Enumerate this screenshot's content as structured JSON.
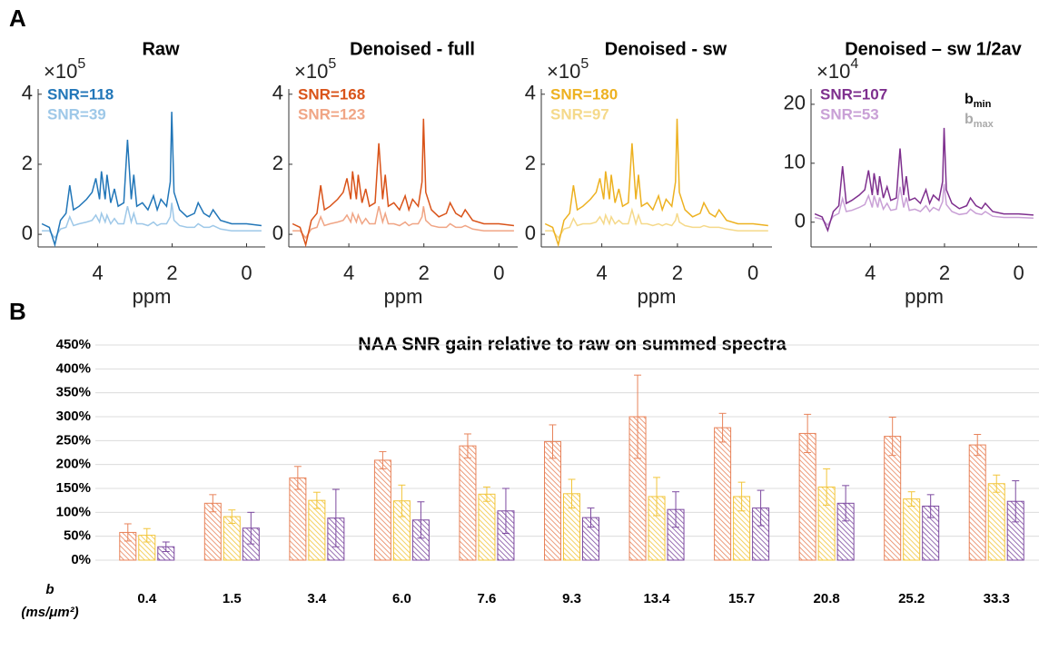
{
  "panel_labels": [
    "A",
    "B"
  ],
  "chart_data": [
    {
      "type": "line",
      "title": "Raw",
      "y_scale_base": "×10",
      "y_scale_exponent": "5",
      "x_label": "ppm",
      "xlim": [
        5.6,
        -0.5
      ],
      "xticks": [
        4,
        2,
        0
      ],
      "ylim": [
        -0.36,
        4.15
      ],
      "yticks": [
        0,
        2,
        4
      ],
      "x": [
        5.5,
        5.3,
        5.15,
        5.0,
        4.85,
        4.75,
        4.65,
        4.5,
        4.3,
        4.15,
        4.05,
        3.95,
        3.9,
        3.8,
        3.75,
        3.65,
        3.55,
        3.45,
        3.3,
        3.2,
        3.1,
        3.03,
        2.95,
        2.8,
        2.65,
        2.5,
        2.4,
        2.3,
        2.15,
        2.05,
        2.01,
        1.95,
        1.8,
        1.6,
        1.4,
        1.3,
        1.15,
        1.0,
        0.9,
        0.7,
        0.4,
        0.0,
        -0.4
      ],
      "series": [
        {
          "label": "SNR=118",
          "color": "#2176b8",
          "values": [
            0.3,
            0.2,
            -0.3,
            0.4,
            0.6,
            1.4,
            0.7,
            0.8,
            1.0,
            1.2,
            1.6,
            1.0,
            1.8,
            1.0,
            1.7,
            0.9,
            1.3,
            0.8,
            0.9,
            2.7,
            1.0,
            1.7,
            0.8,
            0.9,
            0.7,
            1.1,
            0.7,
            1.0,
            0.8,
            1.5,
            3.5,
            1.2,
            0.7,
            0.5,
            0.6,
            0.9,
            0.6,
            0.5,
            0.7,
            0.4,
            0.3,
            0.3,
            0.25
          ]
        },
        {
          "label": "SNR=39",
          "color": "#9ec8e8",
          "values": [
            0.1,
            0.1,
            -0.1,
            0.15,
            0.2,
            0.5,
            0.25,
            0.3,
            0.35,
            0.4,
            0.55,
            0.35,
            0.6,
            0.35,
            0.55,
            0.3,
            0.45,
            0.3,
            0.3,
            0.8,
            0.35,
            0.6,
            0.3,
            0.3,
            0.25,
            0.35,
            0.25,
            0.3,
            0.3,
            0.5,
            0.9,
            0.4,
            0.25,
            0.2,
            0.2,
            0.3,
            0.2,
            0.2,
            0.25,
            0.15,
            0.1,
            0.1,
            0.1
          ]
        }
      ]
    },
    {
      "type": "line",
      "title": "Denoised - full",
      "y_scale_base": "×10",
      "y_scale_exponent": "5",
      "x_label": "ppm",
      "xlim": [
        5.6,
        -0.5
      ],
      "xticks": [
        4,
        2,
        0
      ],
      "ylim": [
        -0.36,
        4.15
      ],
      "yticks": [
        0,
        2,
        4
      ],
      "x": [
        5.5,
        5.3,
        5.15,
        5.0,
        4.85,
        4.75,
        4.65,
        4.5,
        4.3,
        4.15,
        4.05,
        3.95,
        3.9,
        3.8,
        3.75,
        3.65,
        3.55,
        3.45,
        3.3,
        3.2,
        3.1,
        3.03,
        2.95,
        2.8,
        2.65,
        2.5,
        2.4,
        2.3,
        2.15,
        2.05,
        2.01,
        1.95,
        1.8,
        1.6,
        1.4,
        1.3,
        1.15,
        1.0,
        0.9,
        0.7,
        0.4,
        0.0,
        -0.4
      ],
      "series": [
        {
          "label": "SNR=168",
          "color": "#d95319",
          "values": [
            0.3,
            0.2,
            -0.3,
            0.4,
            0.6,
            1.4,
            0.7,
            0.8,
            1.0,
            1.2,
            1.6,
            1.0,
            1.8,
            1.0,
            1.7,
            0.9,
            1.3,
            0.8,
            0.9,
            2.6,
            1.0,
            1.7,
            0.8,
            0.9,
            0.7,
            1.1,
            0.7,
            1.0,
            0.8,
            1.5,
            3.3,
            1.2,
            0.7,
            0.5,
            0.6,
            0.9,
            0.6,
            0.5,
            0.7,
            0.4,
            0.3,
            0.3,
            0.25
          ]
        },
        {
          "label": "SNR=123",
          "color": "#f0a585",
          "values": [
            0.1,
            0.1,
            -0.1,
            0.15,
            0.2,
            0.5,
            0.25,
            0.3,
            0.35,
            0.4,
            0.55,
            0.35,
            0.6,
            0.35,
            0.55,
            0.3,
            0.45,
            0.3,
            0.3,
            0.8,
            0.35,
            0.6,
            0.3,
            0.3,
            0.25,
            0.35,
            0.25,
            0.3,
            0.3,
            0.5,
            0.8,
            0.4,
            0.25,
            0.2,
            0.2,
            0.3,
            0.2,
            0.2,
            0.25,
            0.15,
            0.1,
            0.1,
            0.1
          ]
        }
      ]
    },
    {
      "type": "line",
      "title": "Denoised - sw",
      "y_scale_base": "×10",
      "y_scale_exponent": "5",
      "x_label": "ppm",
      "xlim": [
        5.6,
        -0.5
      ],
      "xticks": [
        4,
        2,
        0
      ],
      "ylim": [
        -0.36,
        4.15
      ],
      "yticks": [
        0,
        2,
        4
      ],
      "x": [
        5.5,
        5.3,
        5.15,
        5.0,
        4.85,
        4.75,
        4.65,
        4.5,
        4.3,
        4.15,
        4.05,
        3.95,
        3.9,
        3.8,
        3.75,
        3.65,
        3.55,
        3.45,
        3.3,
        3.2,
        3.1,
        3.03,
        2.95,
        2.8,
        2.65,
        2.5,
        2.4,
        2.3,
        2.15,
        2.05,
        2.01,
        1.95,
        1.8,
        1.6,
        1.4,
        1.3,
        1.15,
        1.0,
        0.9,
        0.7,
        0.4,
        0.0,
        -0.4
      ],
      "series": [
        {
          "label": "SNR=180",
          "color": "#edb120",
          "values": [
            0.3,
            0.2,
            -0.3,
            0.4,
            0.6,
            1.4,
            0.7,
            0.8,
            1.0,
            1.2,
            1.6,
            1.0,
            1.8,
            1.0,
            1.7,
            0.9,
            1.3,
            0.8,
            0.9,
            2.6,
            1.0,
            1.7,
            0.8,
            0.9,
            0.7,
            1.1,
            0.7,
            1.0,
            0.8,
            1.5,
            3.3,
            1.2,
            0.7,
            0.5,
            0.6,
            0.9,
            0.6,
            0.5,
            0.7,
            0.4,
            0.3,
            0.3,
            0.25
          ]
        },
        {
          "label": "SNR=97",
          "color": "#f5d98a",
          "values": [
            0.1,
            0.1,
            -0.1,
            0.15,
            0.2,
            0.45,
            0.25,
            0.3,
            0.3,
            0.35,
            0.5,
            0.3,
            0.55,
            0.3,
            0.5,
            0.3,
            0.4,
            0.3,
            0.3,
            0.7,
            0.3,
            0.55,
            0.3,
            0.3,
            0.25,
            0.3,
            0.25,
            0.3,
            0.25,
            0.4,
            0.6,
            0.35,
            0.25,
            0.2,
            0.2,
            0.25,
            0.2,
            0.2,
            0.2,
            0.15,
            0.1,
            0.1,
            0.1
          ]
        }
      ]
    },
    {
      "type": "line",
      "title": "Denoised – sw 1/2av",
      "y_scale_base": "×10",
      "y_scale_exponent": "4",
      "x_label": "ppm",
      "xlim": [
        5.6,
        -0.5
      ],
      "xticks": [
        4,
        2,
        0
      ],
      "ylim": [
        -4.2,
        22.6
      ],
      "yticks": [
        0,
        10,
        20
      ],
      "x": [
        5.5,
        5.3,
        5.15,
        5.0,
        4.85,
        4.75,
        4.65,
        4.5,
        4.3,
        4.15,
        4.05,
        3.95,
        3.9,
        3.8,
        3.75,
        3.65,
        3.55,
        3.45,
        3.3,
        3.2,
        3.1,
        3.03,
        2.95,
        2.8,
        2.65,
        2.5,
        2.4,
        2.3,
        2.15,
        2.05,
        2.01,
        1.95,
        1.8,
        1.6,
        1.4,
        1.3,
        1.15,
        1.0,
        0.9,
        0.7,
        0.4,
        0.0,
        -0.4
      ],
      "series": [
        {
          "name": "b",
          "name_subscript": "min",
          "legend_color": "#000000",
          "label": "SNR=107",
          "color": "#7e2f8e",
          "values": [
            1.4,
            0.9,
            -1.4,
            1.8,
            2.8,
            9.5,
            3.2,
            3.7,
            4.6,
            5.5,
            8.8,
            4.6,
            8.3,
            4.6,
            7.8,
            4.1,
            6.0,
            3.7,
            4.1,
            12.5,
            4.6,
            7.8,
            3.7,
            4.1,
            3.2,
            5.5,
            3.2,
            4.6,
            3.7,
            6.9,
            16.0,
            5.5,
            3.2,
            2.3,
            2.8,
            4.1,
            2.8,
            2.3,
            3.2,
            1.8,
            1.4,
            1.4,
            1.2
          ]
        },
        {
          "name": "b",
          "name_subscript": "max",
          "legend_color": "#aaaaaa",
          "label": "SNR=53",
          "color": "#c9a0d6",
          "values": [
            0.8,
            0.5,
            -0.5,
            1.0,
            1.5,
            4.0,
            1.8,
            2.0,
            2.5,
            3.0,
            4.5,
            2.5,
            4.5,
            2.5,
            4.2,
            2.2,
            3.2,
            2.0,
            2.2,
            6.0,
            2.5,
            4.2,
            2.0,
            2.2,
            1.8,
            2.8,
            1.8,
            2.5,
            2.0,
            3.5,
            6.5,
            3.0,
            1.8,
            1.3,
            1.5,
            2.2,
            1.5,
            1.3,
            1.8,
            1.0,
            0.8,
            0.8,
            0.7
          ]
        }
      ]
    },
    {
      "type": "bar",
      "title": "NAA SNR gain relative to raw on summed spectra",
      "x_label": "b",
      "x_unit": "(ms/μm²)",
      "categories": [
        "0.4",
        "1.5",
        "3.4",
        "6.0",
        "7.6",
        "9.3",
        "13.4",
        "15.7",
        "20.8",
        "25.2",
        "33.3"
      ],
      "ylim": [
        0,
        450
      ],
      "grid": true,
      "yticks": [
        {
          "value": 0,
          "label": "0%"
        },
        {
          "value": 50,
          "label": "50%"
        },
        {
          "value": 100,
          "label": "100%"
        },
        {
          "value": 150,
          "label": "150%"
        },
        {
          "value": 200,
          "label": "200%"
        },
        {
          "value": 250,
          "label": "250%"
        },
        {
          "value": 300,
          "label": "300%"
        },
        {
          "value": 350,
          "label": "350%"
        },
        {
          "value": 400,
          "label": "400%"
        },
        {
          "value": 450,
          "label": "450%"
        }
      ],
      "series": [
        {
          "color": "#e8835a",
          "values": [
            58,
            119,
            172,
            209,
            239,
            248,
            300,
            277,
            265,
            259,
            241
          ],
          "errors": [
            18,
            18,
            24,
            18,
            25,
            35,
            87,
            30,
            40,
            40,
            22
          ]
        },
        {
          "color": "#f2c53a",
          "values": [
            52,
            91,
            125,
            124,
            138,
            139,
            133,
            133,
            153,
            128,
            160
          ],
          "errors": [
            14,
            14,
            17,
            33,
            15,
            30,
            40,
            30,
            38,
            15,
            18
          ]
        },
        {
          "color": "#7d4aa0",
          "values": [
            28,
            67,
            88,
            84,
            103,
            89,
            106,
            109,
            119,
            113,
            123
          ],
          "errors": [
            10,
            33,
            60,
            38,
            47,
            20,
            37,
            37,
            37,
            24,
            43
          ]
        }
      ]
    }
  ]
}
